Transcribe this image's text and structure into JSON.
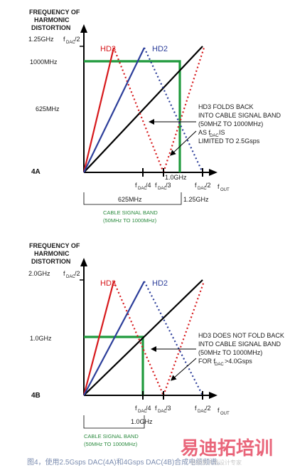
{
  "panelA": {
    "yaxis_title": [
      "FREQUENCY OF",
      "HARMONIC",
      "DISTORTION"
    ],
    "y_top": "1.25GHz",
    "y_top_f": "f",
    "y_top_f_sub": "DAC",
    "y_top_f_div": "/2",
    "y_1000": "1000MHz",
    "y_625": "625MHz",
    "hd3": "HD3",
    "hd2": "HD2",
    "tick_f": "f",
    "tick_sub": "DAC",
    "tick_div4": "/4",
    "tick_div3": "/3",
    "tick_div2": "/2",
    "tick_1ghz": "1.0GHz",
    "out_f": "f",
    "out_sub": "OUT",
    "x_625": "625MHz",
    "x_125": "1.25GHz",
    "band_label": "CABLE SIGNAL BAND",
    "band_range": "(50MHz TO 1000MHz)",
    "note": [
      "HD3 FOLDS BACK",
      "INTO CABLE SIGNAL BAND",
      "(50MHZ TO 1000MHz)"
    ],
    "note_as": "AS f",
    "note_sub": "DAC",
    "note_is": " IS",
    "note_limit": "LIMITED TO 2.5Gsps",
    "panel_label": "4A"
  },
  "panelB": {
    "yaxis_title": [
      "FREQUENCY OF",
      "HARMONIC",
      "DISTORTION"
    ],
    "y_top": "2.0GHz",
    "y_top_f": "f",
    "y_top_f_sub": "DAC",
    "y_top_f_div": "/2",
    "y_1ghz": "1.0GHz",
    "hd3": "HD3",
    "hd2": "HD2",
    "tick_f": "f",
    "tick_sub": "DAC",
    "tick_div4": "/4",
    "tick_div3": "/3",
    "tick_div2": "/2",
    "out_f": "f",
    "out_sub": "OUT",
    "x_1ghz": "1.0GHz",
    "band_label": "CABLE SIGNAL BAND",
    "band_range": "(50MHz TO 1000MHz)",
    "note": [
      "HD3 DOES NOT FOLD BACK",
      "INTO CABLE SIGNAL BAND",
      "(50MHz TO 1000MHz)"
    ],
    "note_for": "FOR f",
    "note_sub": "DAC",
    "note_gt": ">4.0Gsps",
    "panel_label": "4B"
  },
  "caption": "图4，使用2.5Gsps DAC(4A)和4Gsps DAC(4B)合成电缆频谱。",
  "watermark": "易迪拓培训",
  "watermark_sub": "射频和天线设计专家",
  "colors": {
    "hd3": "#d7191c",
    "hd2": "#2c3e9a",
    "band": "#1f9a3c",
    "fundamental": "#000000"
  },
  "icons": [
    "axis-arrow-icon",
    "note-arrow-icon"
  ]
}
